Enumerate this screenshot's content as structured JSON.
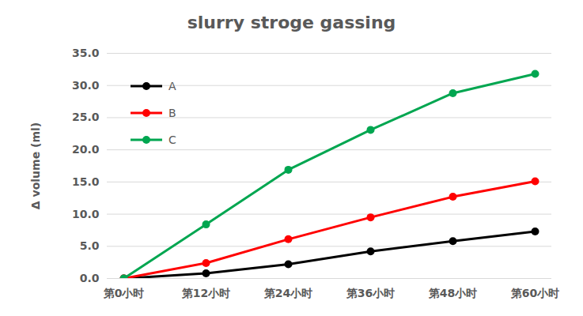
{
  "chart_data": {
    "type": "line",
    "title": "slurry stroge gassing",
    "ylabel": "Δ volume (ml)",
    "categories": [
      "第0小时",
      "第12小时",
      "第24小时",
      "第36小时",
      "第48小时",
      "第60小时"
    ],
    "series": [
      {
        "name": "A",
        "color": "#000000",
        "values": [
          0,
          0.8,
          2.2,
          4.2,
          5.8,
          7.3
        ]
      },
      {
        "name": "B",
        "color": "#ff0000",
        "values": [
          0,
          2.4,
          6.1,
          9.5,
          12.7,
          15.1
        ]
      },
      {
        "name": "C",
        "color": "#00a650",
        "values": [
          0,
          8.4,
          16.9,
          23.1,
          28.8,
          31.8
        ]
      }
    ],
    "ylim": [
      0,
      35
    ],
    "yticks": [
      {
        "value": 0,
        "label": "0.0"
      },
      {
        "value": 5,
        "label": "5.0"
      },
      {
        "value": 10,
        "label": "10.0"
      },
      {
        "value": 15,
        "label": "15.0"
      },
      {
        "value": 20,
        "label": "20.0"
      },
      {
        "value": 25,
        "label": "25.0"
      },
      {
        "value": 30,
        "label": "30.0"
      },
      {
        "value": 35,
        "label": "35.0"
      }
    ],
    "grid": true,
    "legend": "upper left",
    "marker": "circle"
  }
}
